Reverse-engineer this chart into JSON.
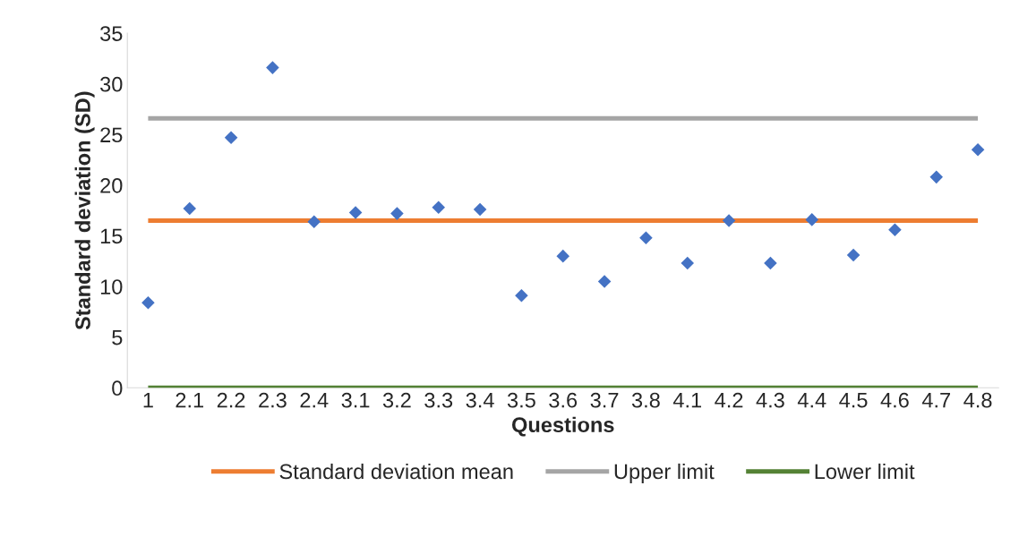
{
  "chart_data": {
    "type": "scatter",
    "xlabel": "Questions",
    "ylabel": "Standard deviation (SD)",
    "categories": [
      "1",
      "2.1",
      "2.2",
      "2.3",
      "2.4",
      "3.1",
      "3.2",
      "3.3",
      "3.4",
      "3.5",
      "3.6",
      "3.7",
      "3.8",
      "4.1",
      "4.2",
      "4.3",
      "4.4",
      "4.5",
      "4.6",
      "4.7",
      "4.8"
    ],
    "series": [
      {
        "color": "#4472c4",
        "marker": "diamond",
        "values": [
          8.4,
          17.7,
          24.7,
          31.6,
          16.4,
          17.3,
          17.2,
          17.8,
          17.6,
          9.1,
          13.0,
          10.5,
          14.8,
          12.3,
          16.5,
          12.3,
          16.6,
          13.1,
          15.6,
          20.8,
          23.5
        ]
      },
      {
        "type": "line",
        "name": "Standard deviation mean",
        "color": "#ed7d31",
        "marker": "none",
        "values": [
          16.5,
          16.5,
          16.5,
          16.5,
          16.5,
          16.5,
          16.5,
          16.5,
          16.5,
          16.5,
          16.5,
          16.5,
          16.5,
          16.5,
          16.5,
          16.5,
          16.5,
          16.5,
          16.5,
          16.5,
          16.5
        ]
      },
      {
        "type": "line",
        "name": "Upper limit",
        "color": "#a5a5a5",
        "marker": "none",
        "values": [
          26.6,
          26.6,
          26.6,
          26.6,
          26.6,
          26.6,
          26.6,
          26.6,
          26.6,
          26.6,
          26.6,
          26.6,
          26.6,
          26.6,
          26.6,
          26.6,
          26.6,
          26.6,
          26.6,
          26.6,
          26.6
        ]
      },
      {
        "type": "line",
        "name": "Lower limit",
        "color": "#548235",
        "marker": "none",
        "values": [
          0,
          0,
          0,
          0,
          0,
          0,
          0,
          0,
          0,
          0,
          0,
          0,
          0,
          0,
          0,
          0,
          0,
          0,
          0,
          0,
          0
        ]
      }
    ],
    "ylim": [
      0,
      35
    ],
    "yticks": [
      0,
      5,
      10,
      15,
      20,
      25,
      30,
      35
    ],
    "grid": false,
    "legend": "bottom"
  }
}
